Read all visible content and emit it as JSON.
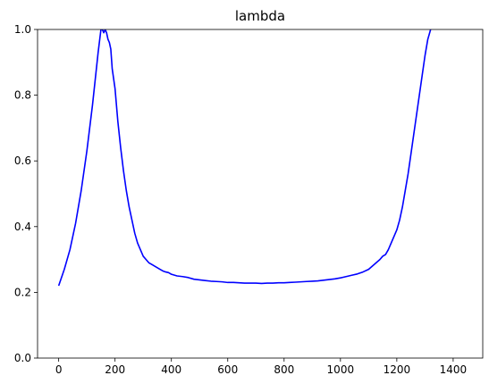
{
  "chart_data": {
    "type": "line",
    "title": "lambda",
    "xlabel": "",
    "ylabel": "",
    "xlim": [
      -75,
      1505
    ],
    "ylim": [
      0,
      1.0
    ],
    "x_ticks": [
      0,
      200,
      400,
      600,
      800,
      1000,
      1200,
      1400
    ],
    "y_ticks": [
      0.0,
      0.2,
      0.4,
      0.6,
      0.8,
      1.0
    ],
    "y_tick_labels": [
      "0.0",
      "0.2",
      "0.4",
      "0.6",
      "0.8",
      "1.0"
    ],
    "grid": false,
    "series": [
      {
        "color": "#0000ff",
        "x": [
          0,
          20,
          40,
          60,
          80,
          100,
          120,
          140,
          150,
          155,
          160,
          165,
          170,
          175,
          180,
          185,
          190,
          200,
          210,
          220,
          230,
          240,
          250,
          260,
          270,
          280,
          290,
          300,
          310,
          320,
          330,
          340,
          350,
          360,
          370,
          380,
          390,
          400,
          420,
          440,
          460,
          480,
          500,
          520,
          540,
          560,
          580,
          600,
          620,
          640,
          660,
          680,
          700,
          720,
          740,
          760,
          780,
          800,
          820,
          840,
          860,
          880,
          900,
          920,
          940,
          960,
          980,
          1000,
          1020,
          1040,
          1060,
          1080,
          1100,
          1120,
          1140,
          1150,
          1160,
          1170,
          1180,
          1190,
          1200,
          1210,
          1220,
          1230,
          1240,
          1250,
          1260,
          1270,
          1280,
          1290,
          1300,
          1310,
          1320
        ],
        "y": [
          0.22,
          0.27,
          0.33,
          0.41,
          0.51,
          0.63,
          0.77,
          0.93,
          1.0,
          1.0,
          0.99,
          1.0,
          0.99,
          0.97,
          0.96,
          0.94,
          0.88,
          0.82,
          0.72,
          0.64,
          0.57,
          0.51,
          0.46,
          0.42,
          0.38,
          0.35,
          0.33,
          0.31,
          0.3,
          0.29,
          0.285,
          0.28,
          0.275,
          0.27,
          0.265,
          0.262,
          0.26,
          0.255,
          0.25,
          0.248,
          0.245,
          0.24,
          0.238,
          0.236,
          0.234,
          0.233,
          0.232,
          0.23,
          0.23,
          0.229,
          0.228,
          0.228,
          0.228,
          0.227,
          0.228,
          0.228,
          0.229,
          0.229,
          0.23,
          0.231,
          0.232,
          0.233,
          0.234,
          0.235,
          0.237,
          0.239,
          0.241,
          0.244,
          0.248,
          0.252,
          0.256,
          0.262,
          0.27,
          0.285,
          0.3,
          0.31,
          0.315,
          0.33,
          0.35,
          0.37,
          0.39,
          0.42,
          0.46,
          0.51,
          0.56,
          0.62,
          0.68,
          0.74,
          0.8,
          0.86,
          0.92,
          0.97,
          1.0
        ]
      }
    ]
  }
}
